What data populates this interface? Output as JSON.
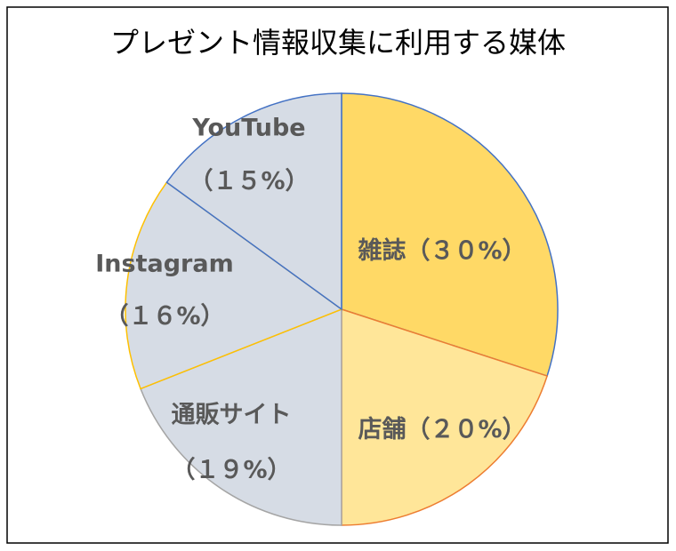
{
  "chart_data": {
    "type": "pie",
    "title": "プレゼント情報収集に利用する媒体",
    "categories": [
      "雑誌",
      "店舗",
      "通販サイト",
      "Instagram",
      "YouTube"
    ],
    "values": [
      30,
      20,
      19,
      16,
      15
    ],
    "value_labels": [
      "（３０%）",
      "（２０%）",
      "（１９%）",
      "（１６%）",
      "（１５%）"
    ],
    "colors": [
      "#FFD966",
      "#FFE699",
      "#D6DCE5",
      "#D6DCE5",
      "#D6DCE5"
    ],
    "edge_colors": [
      "#4472C4",
      "#ED7D31",
      "#A5A5A5",
      "#FFC000",
      "#4472C4"
    ]
  }
}
